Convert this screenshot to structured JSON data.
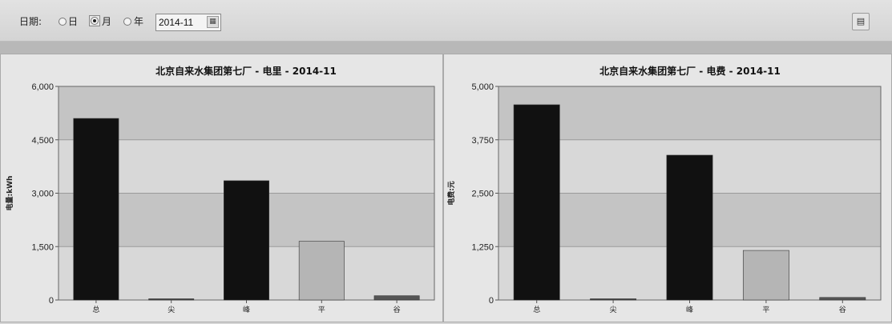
{
  "toolbar": {
    "date_label": "日期:",
    "radio_day": "日",
    "radio_month": "月",
    "radio_year": "年",
    "selected": "月",
    "date_value": "2014-11",
    "calendar_icon": "calendar-icon",
    "export_icon": "export-icon"
  },
  "chart_data": [
    {
      "type": "bar",
      "title": "北京自来水集团第七厂 - 电里 - 2014-11",
      "ylabel": "电量:kWh",
      "xlabel": "",
      "categories": [
        "总",
        "尖",
        "峰",
        "平",
        "谷"
      ],
      "values": [
        5100,
        0,
        3350,
        1650,
        120
      ],
      "ylim": [
        0,
        6000
      ],
      "yticks": [
        "0",
        "1,500",
        "3,000",
        "4,500",
        "6,000"
      ],
      "ytick_values": [
        0,
        1500,
        3000,
        4500,
        6000
      ],
      "bar_colors": [
        "#111111",
        "#444444",
        "#111111",
        "#b5b5b5",
        "#555555"
      ],
      "grid": true,
      "bands": [
        "#c4c4c4",
        "#d8d8d8"
      ]
    },
    {
      "type": "bar",
      "title": "北京自来水集团第七厂 - 电费 - 2014-11",
      "ylabel": "电费:元",
      "xlabel": "",
      "categories": [
        "总",
        "尖",
        "峰",
        "平",
        "谷"
      ],
      "values": [
        4570,
        0,
        3390,
        1160,
        60
      ],
      "ylim": [
        0,
        5000
      ],
      "yticks": [
        "0",
        "1,250",
        "2,500",
        "3,750",
        "5,000"
      ],
      "ytick_values": [
        0,
        1250,
        2500,
        3750,
        5000
      ],
      "bar_colors": [
        "#111111",
        "#444444",
        "#111111",
        "#b5b5b5",
        "#555555"
      ],
      "grid": true,
      "bands": [
        "#c4c4c4",
        "#d8d8d8"
      ]
    }
  ]
}
